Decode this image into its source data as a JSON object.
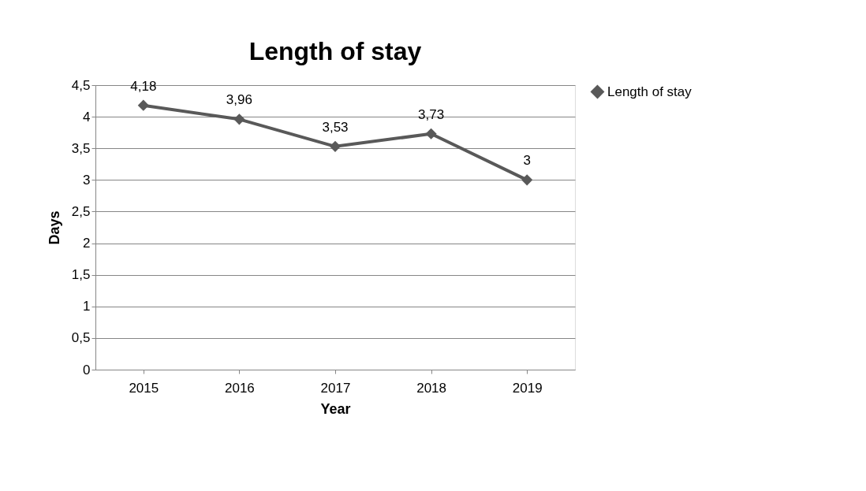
{
  "chart_data": {
    "type": "line",
    "title": "Length of stay",
    "xlabel": "Year",
    "ylabel": "Days",
    "categories": [
      "2015",
      "2016",
      "2017",
      "2018",
      "2019"
    ],
    "series": [
      {
        "name": "Length of stay",
        "color": "#595959",
        "values": [
          4.18,
          3.96,
          3.53,
          3.73,
          3
        ],
        "value_labels": [
          "4,18",
          "3,96",
          "3,53",
          "3,73",
          "3"
        ]
      }
    ],
    "ylim": [
      0,
      4.5
    ],
    "yticks": [
      0,
      {
        "value": 0.5,
        "label": "0,5"
      },
      1,
      {
        "value": 1.5,
        "label": "1,5"
      },
      2,
      {
        "value": 2.5,
        "label": "2,5"
      },
      3,
      {
        "value": 3.5,
        "label": "3,5"
      },
      4,
      {
        "value": 4.5,
        "label": "4,5"
      }
    ],
    "grid": "y",
    "legend": "right",
    "marker": "diamond",
    "line_style": "solid"
  }
}
